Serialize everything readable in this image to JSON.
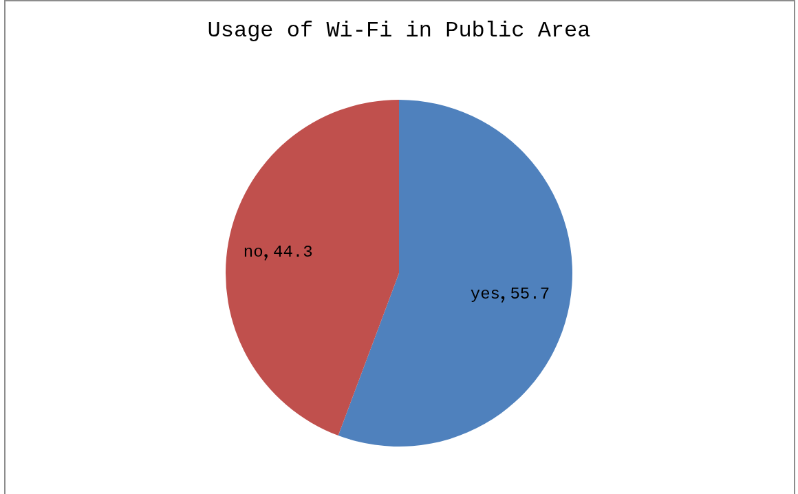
{
  "chart_data": {
    "type": "pie",
    "title": "Usage of Wi-Fi in Public Area",
    "categories": [
      "yes",
      "no"
    ],
    "values": [
      55.7,
      44.3
    ],
    "colors": [
      "#4f81bd",
      "#c0504d"
    ],
    "data_labels": true,
    "legend": false
  }
}
